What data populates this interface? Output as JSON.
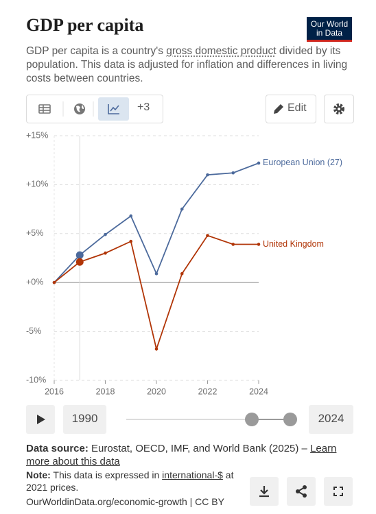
{
  "header": {
    "title": "GDP per capita",
    "logo": "Our World in Data",
    "subtitle": [
      "GDP per capita is a country's ",
      "gross domestic product",
      " divided by its population. This data is adjusted for inflation and differences in living costs between countries."
    ]
  },
  "toolbar": {
    "more_tabs": "+3",
    "edit": "Edit"
  },
  "chart_data": {
    "type": "line",
    "x": [
      2016,
      2017,
      2018,
      2019,
      2020,
      2021,
      2022,
      2023,
      2024
    ],
    "xlim": [
      2016,
      2024
    ],
    "xticks": [
      2016,
      2018,
      2020,
      2022,
      2024
    ],
    "ylim": [
      -10,
      15
    ],
    "yticks": [
      {
        "value": -10,
        "label": "-10%"
      },
      {
        "value": -5,
        "label": "-5%"
      },
      {
        "value": 0,
        "label": "+0%"
      },
      {
        "value": 5,
        "label": "+5%"
      },
      {
        "value": 10,
        "label": "+10%"
      },
      {
        "value": 15,
        "label": "+15%"
      }
    ],
    "grid": true,
    "series": [
      {
        "name": "European Union (27)",
        "color": "#4c6a9c",
        "values": [
          0,
          2.8,
          4.9,
          6.8,
          0.9,
          7.5,
          11.0,
          11.2,
          12.2
        ]
      },
      {
        "name": "United Kingdom",
        "color": "#b13507",
        "values": [
          0,
          2.1,
          3.0,
          4.2,
          -6.8,
          0.9,
          4.8,
          3.9,
          3.9
        ]
      }
    ]
  },
  "timeline": {
    "start": "1990",
    "end": "2024"
  },
  "footer": {
    "source_label": "Data source:",
    "source": "Eurostat, OECD, IMF, and World Bank (2025) – ",
    "source_link": "Learn more about this data",
    "note_label": "Note:",
    "note": [
      "This data is expressed in ",
      "international-$",
      " at 2021 prices."
    ],
    "url": "OurWorldinData.org/economic-growth | CC BY"
  }
}
